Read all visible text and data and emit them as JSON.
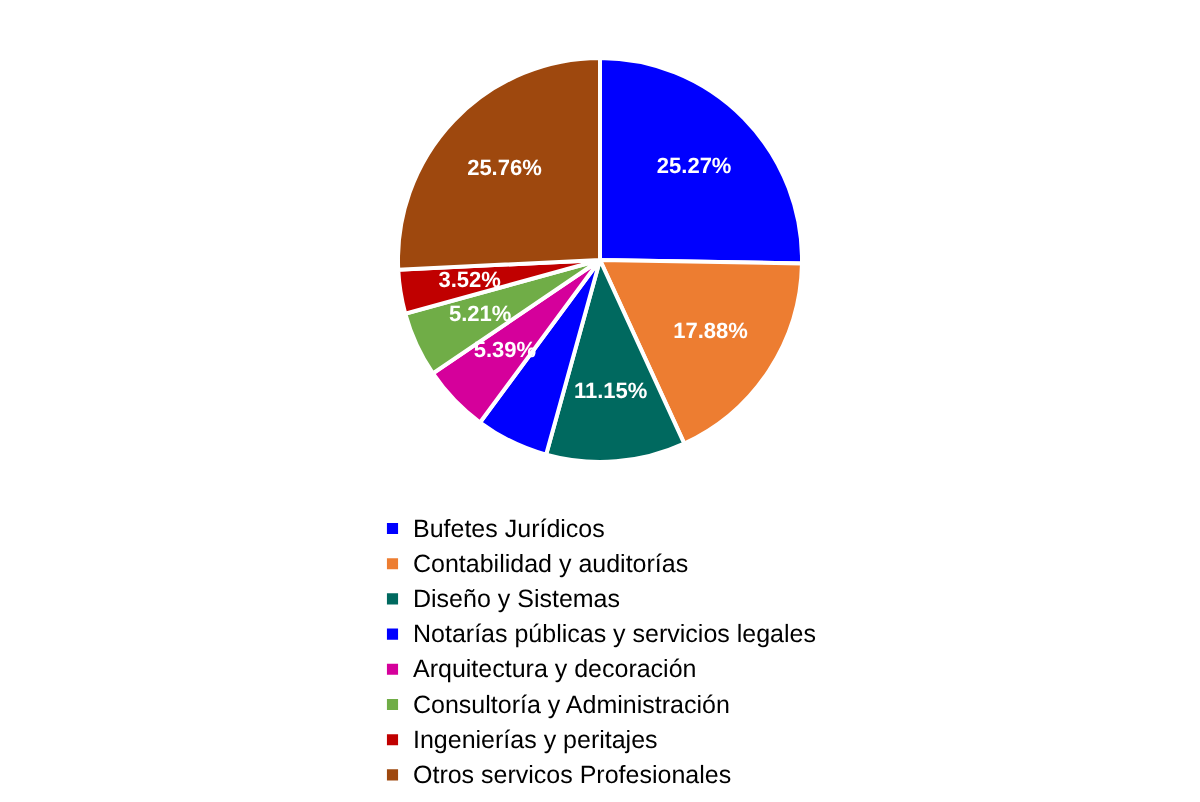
{
  "chart_data": {
    "type": "pie",
    "categories": [
      "Bufetes Jurídicos",
      "Contabilidad y auditorías",
      "Diseño y Sistemas",
      "Notarías públicas y servicios  legales",
      "Arquitectura y decoración",
      "Consultoría y Administración",
      "Ingenierías y peritajes",
      "Otros servicos Profesionales"
    ],
    "values": [
      25.27,
      17.88,
      11.15,
      5.82,
      5.39,
      5.21,
      3.52,
      25.76
    ],
    "value_labels": [
      "25.27%",
      "17.88%",
      "11.15%",
      null,
      "5.39%",
      "5.21%",
      "3.52%",
      "25.76%"
    ],
    "colors": [
      "#0000ff",
      "#ed7d31",
      "#00695f",
      "#0000ff",
      "#d5009b",
      "#70ad47",
      "#c00000",
      "#9e480e"
    ],
    "legend": "bottom"
  }
}
